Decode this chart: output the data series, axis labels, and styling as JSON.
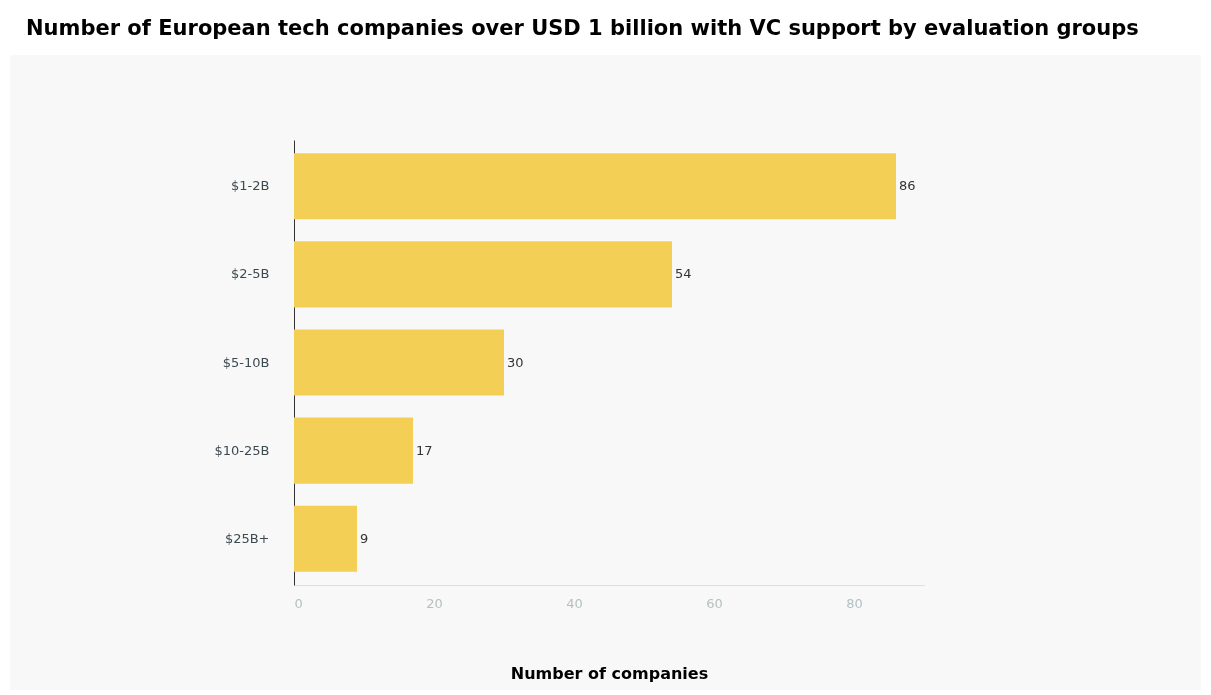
{
  "chart_data": {
    "type": "bar",
    "orientation": "horizontal",
    "title": "Number of European tech companies over USD 1 billion with VC support by evaluation groups",
    "xlabel": "Number of companies",
    "categories": [
      "$1-2B",
      "$2-5B",
      "$5-10B",
      "$10-25B",
      "$25B+"
    ],
    "values": [
      86,
      54,
      30,
      17,
      9
    ],
    "color": "#f4cf55",
    "data_labels": true,
    "xlim": [
      0,
      90
    ],
    "xticks": [
      0,
      20,
      40,
      60,
      80
    ],
    "grid": false
  }
}
